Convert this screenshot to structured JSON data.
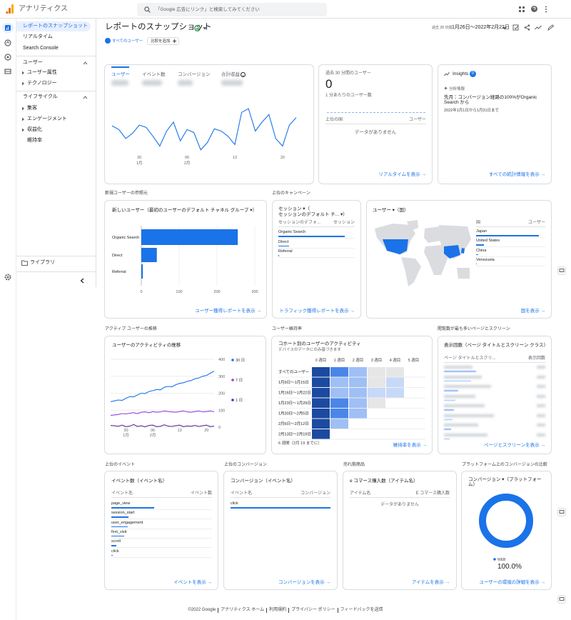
{
  "topbar": {
    "product": "アナリティクス",
    "search": "「Google 広告にリンク」と検索してみてください"
  },
  "sidebar": {
    "nav": [
      "レポートのスナップショット",
      "リアルタイム",
      "Search Console"
    ],
    "groups": [
      {
        "title": "ユーザー",
        "items": [
          "ユーザー属性",
          "テクノロジー"
        ]
      },
      {
        "title": "ライフサイクル",
        "items": [
          "集客",
          "エンゲージメント",
          "収益化",
          "維持率"
        ]
      }
    ],
    "library": "ライブラリ"
  },
  "header": {
    "title": "レポートのスナップショット",
    "range_label": "過去 28 日間",
    "range": "1月26日～2022年2月22日",
    "segment": "すべてのユーザー",
    "compare": "比較を追加"
  },
  "sections": [
    "新規ユーザーの参照元",
    "上位のキャンペーン",
    "アクティブ ユーザーの推移",
    "ユーザー維持率",
    "閲覧数が最も多いページとスクリーン",
    "上位のイベント",
    "上位のコンバージョン",
    "売れ筋商品",
    "プラットフォーム上のコンバージョンの比較"
  ],
  "overview": {
    "tabs": [
      "ユーザー",
      "イベント数",
      "コンバージョン",
      "合計収益"
    ]
  },
  "realtime": {
    "title": "過去 30 分間のユーザー",
    "value": 0,
    "subtitle": "1 分あたりのユーザー数",
    "columns": [
      "上位の国",
      "ユーザー"
    ],
    "empty": "データがありません",
    "link": "リアルタイムを表示 →"
  },
  "insights": {
    "title": "Insights",
    "count": 0,
    "label": "分析情報",
    "text": "先月：コンバージョン経路の100%がOrganic Search から",
    "date": "2022年1月1日から1月31日まで",
    "link": "すべての統計情報を表示 →"
  },
  "campaigns": {
    "title_lines": [
      "セッション ▾（",
      "セッションのデフォルト チ... ▾）"
    ],
    "columns": [
      "セッションのデフォ...",
      "セッション"
    ],
    "rows": [
      "Organic Search",
      "Direct",
      "Referral"
    ],
    "values": [
      255,
      41,
      4
    ],
    "link": "トラフィック獲得レポートを表示 →"
  },
  "countries": {
    "title": "ユーザー ▾（国）",
    "columns": [
      "国",
      "ユーザー"
    ],
    "rows": [
      "Japan",
      "United States",
      "China",
      "Venezuela"
    ],
    "values": [
      250,
      30,
      8,
      1
    ],
    "link": "国を表示 →"
  },
  "pages": {
    "title": "表示回数（ページ タイトルとスクリーン クラス）",
    "columns": [
      "ページ タイトルとスクリ...",
      "表示回数"
    ],
    "link": "ページとスクリーンを表示 →"
  },
  "events": {
    "title": "イベント数（イベント名）",
    "columns": [
      "イベント名",
      "イベント数"
    ],
    "rows": [
      "page_view",
      "session_start",
      "user_engagement",
      "first_visit",
      "scroll",
      "click"
    ],
    "values": [
      100,
      40,
      38,
      30,
      12,
      3
    ],
    "link": "イベントを表示 →"
  },
  "conversions": {
    "title": "コンバージョン（イベント名）",
    "columns": [
      "イベント名",
      "コンバージョン"
    ],
    "rows": [
      "click"
    ],
    "values": [
      1
    ],
    "link": "コンバージョンを表示 →"
  },
  "items": {
    "title": "e コマース購入数（アイテム名）",
    "columns": [
      "アイテム名",
      "E コマース購入数"
    ],
    "empty": "データがありません",
    "link": "アイテムを表示 →"
  },
  "footer": [
    "©2022 Google",
    "アナリティクス ホーム",
    "利用規約",
    "プライバシー ポリシー",
    "フィードバックを送信"
  ],
  "chart_data": [
    {
      "type": "line",
      "color": "#1a73e8",
      "values": [
        37,
        32,
        20,
        27,
        38,
        35,
        23,
        10,
        30,
        42,
        17,
        32,
        28,
        5,
        15,
        33,
        30,
        23,
        12,
        55,
        60,
        30,
        42,
        52,
        20,
        10,
        38,
        48
      ],
      "xticks": [
        {
          "value": 4,
          "label": "30"
        },
        {
          "value": 11,
          "label": "06"
        },
        {
          "value": 18,
          "label": "13"
        },
        {
          "value": 25,
          "label": "20"
        }
      ],
      "month_labels": [
        {
          "value": 4,
          "label": "1月"
        },
        {
          "value": 11,
          "label": "2月"
        }
      ]
    },
    {
      "type": "bar",
      "orientation": "horizontal",
      "title": "新しいユーザー（最初のユーザーのデフォルト チャネル グループ ▾）",
      "categories": [
        "Organic Search",
        "Direct",
        "Referral"
      ],
      "values": [
        255,
        41,
        4
      ],
      "color": "#1a73e8",
      "xlim": [
        0,
        300
      ],
      "xticks": [
        0,
        100,
        200,
        300
      ],
      "link": "ユーザー獲得レポートを表示 →"
    },
    {
      "type": "line",
      "title": "ユーザーのアクティビティの推移",
      "ylim": [
        0,
        400
      ],
      "yticks": [
        0,
        100,
        200,
        300,
        400
      ],
      "series": [
        {
          "name": "30 日",
          "color": "#1a73e8",
          "values": [
            150,
            155,
            160,
            158,
            170,
            180,
            178,
            190,
            200,
            198,
            210,
            215,
            222,
            220,
            235,
            240,
            238,
            250,
            258,
            262,
            270,
            275,
            285,
            290,
            300,
            305,
            318,
            330
          ]
        },
        {
          "name": "7 日",
          "color": "#8e44d8",
          "values": [
            70,
            72,
            75,
            80,
            78,
            82,
            85,
            80,
            88,
            90,
            85,
            92,
            88,
            90,
            95,
            92,
            90,
            88,
            92,
            95,
            90,
            88,
            92,
            95,
            90,
            92,
            95,
            90
          ]
        },
        {
          "name": "1 日",
          "color": "#5a2fa0",
          "values": [
            10,
            8,
            5,
            12,
            3,
            6,
            15,
            4,
            8,
            2,
            10,
            12,
            3,
            5,
            14,
            6,
            4,
            9,
            12,
            3,
            7,
            5,
            10,
            4,
            8,
            12,
            3,
            6
          ]
        }
      ],
      "xticks": [
        {
          "value": 4,
          "label": "30"
        },
        {
          "value": 11,
          "label": "06"
        },
        {
          "value": 18,
          "label": "13"
        },
        {
          "value": 25,
          "label": "20"
        }
      ],
      "month_labels": [
        {
          "value": 4,
          "label": "1月"
        },
        {
          "value": 11,
          "label": "2月"
        }
      ]
    },
    {
      "type": "heatmap",
      "title": "コホート別のユーザーのアクティビティ",
      "subtitle": "デバイスのデータにのみ基づきます",
      "columns": [
        "0 週目",
        "1 週目",
        "2 週目",
        "3 週目",
        "4 週目",
        "5 週目"
      ],
      "rows": [
        "すべてのユーザー",
        "1月9日～1月15日",
        "1月16日～1月22日",
        "1月23日～1月29日",
        "1月30日～2月5日",
        "2月6日～2月12日",
        "2月13日～2月19日"
      ],
      "values": [
        [
          100,
          25,
          12,
          4,
          4
        ],
        [
          100,
          12,
          10,
          4,
          8
        ],
        [
          100,
          12,
          10,
          8,
          8
        ],
        [
          100,
          30,
          12,
          4
        ],
        [
          100,
          30,
          12
        ],
        [
          100,
          12
        ],
        [
          100
        ]
      ],
      "footer": "6 週間（2月 19 までに）",
      "link": "維持率を表示 →"
    },
    {
      "type": "pie",
      "title": "コンバージョン ▾（プラットフォーム）",
      "categories": [
        "WEB"
      ],
      "values": [
        100
      ],
      "value_labels": [
        "100.0%"
      ],
      "colors": [
        "#1a73e8"
      ],
      "link": "ユーザーの環境の詳細を表示 →"
    }
  ]
}
